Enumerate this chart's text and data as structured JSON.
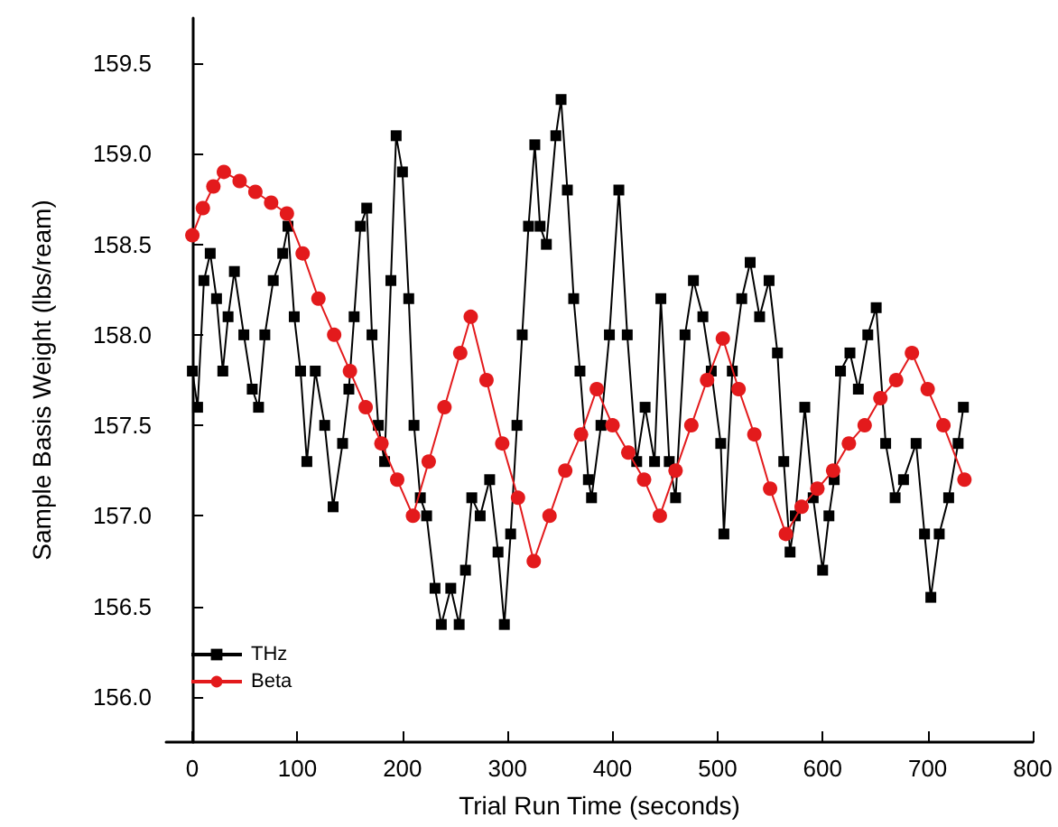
{
  "chart_data": {
    "type": "line",
    "xlabel": "Trial Run Time (seconds)",
    "ylabel": "Sample Basis Weight (lbs/ream)",
    "xlim": [
      -25,
      800
    ],
    "xticks": [
      0,
      100,
      200,
      300,
      400,
      500,
      600,
      700,
      800
    ],
    "ylim": [
      155.75,
      159.75
    ],
    "yticks": [
      {
        "value": 156,
        "label": "156.0"
      },
      {
        "value": 156.5,
        "label": "156.5"
      },
      {
        "value": 157,
        "label": "157.0"
      },
      {
        "value": 157.5,
        "label": "157.5"
      },
      {
        "value": 158,
        "label": "158.0"
      },
      {
        "value": 158.5,
        "label": "158.5"
      },
      {
        "value": 159,
        "label": "159.0"
      },
      {
        "value": 159.5,
        "label": "159.5"
      }
    ],
    "grid": false,
    "legend": "bottom left",
    "series": [
      {
        "name": "THz",
        "color": "#000000",
        "marker": "square",
        "x": [
          0,
          5,
          11,
          17,
          23,
          29,
          34,
          40,
          49,
          57,
          63,
          69,
          77,
          86,
          91,
          97,
          103,
          109,
          117,
          126,
          134,
          143,
          149,
          154,
          160,
          166,
          171,
          177,
          183,
          189,
          194,
          200,
          206,
          211,
          217,
          223,
          231,
          237,
          246,
          254,
          260,
          266,
          274,
          283,
          291,
          297,
          303,
          309,
          314,
          320,
          326,
          331,
          337,
          346,
          351,
          357,
          363,
          369,
          377,
          380,
          389,
          397,
          406,
          414,
          423,
          431,
          440,
          446,
          454,
          460,
          469,
          477,
          486,
          494,
          503,
          506,
          514,
          523,
          531,
          540,
          549,
          557,
          563,
          569,
          574,
          583,
          591,
          600,
          606,
          611,
          617,
          626,
          634,
          643,
          651,
          660,
          669,
          677,
          689,
          697,
          703,
          711,
          720,
          729,
          734
        ],
        "values": [
          157.8,
          157.6,
          158.3,
          158.45,
          158.2,
          157.8,
          158.1,
          158.35,
          158.0,
          157.7,
          157.6,
          158.0,
          158.3,
          158.45,
          158.6,
          158.1,
          157.8,
          157.3,
          157.8,
          157.5,
          157.05,
          157.4,
          157.7,
          158.1,
          158.6,
          158.7,
          158.0,
          157.5,
          157.3,
          158.3,
          159.1,
          158.9,
          158.2,
          157.5,
          157.1,
          157.0,
          156.6,
          156.4,
          156.6,
          156.4,
          156.7,
          157.1,
          157.0,
          157.2,
          156.8,
          156.4,
          156.9,
          157.5,
          158.0,
          158.6,
          159.05,
          158.6,
          158.5,
          159.1,
          159.3,
          158.8,
          158.2,
          157.8,
          157.2,
          157.1,
          157.5,
          158.0,
          158.8,
          158.0,
          157.3,
          157.6,
          157.3,
          158.2,
          157.3,
          157.1,
          158.0,
          158.3,
          158.1,
          157.8,
          157.4,
          156.9,
          157.8,
          158.2,
          158.4,
          158.1,
          158.3,
          157.9,
          157.3,
          156.8,
          157.0,
          157.6,
          157.1,
          156.7,
          157.0,
          157.2,
          157.8,
          157.9,
          157.7,
          158.0,
          158.15,
          157.4,
          157.1,
          157.2,
          157.4,
          156.9,
          156.55,
          156.9,
          157.1,
          157.4,
          157.6
        ]
      },
      {
        "name": "Beta",
        "color": "#e31a1c",
        "marker": "circle",
        "x": [
          0,
          10,
          20,
          30,
          45,
          60,
          75,
          90,
          105,
          120,
          135,
          150,
          165,
          180,
          195,
          210,
          225,
          240,
          255,
          265,
          280,
          295,
          310,
          325,
          340,
          355,
          370,
          385,
          400,
          415,
          430,
          445,
          460,
          475,
          490,
          505,
          520,
          535,
          550,
          565,
          580,
          595,
          610,
          625,
          640,
          655,
          670,
          685,
          700,
          715,
          735
        ],
        "values": [
          158.55,
          158.7,
          158.82,
          158.9,
          158.85,
          158.79,
          158.73,
          158.67,
          158.45,
          158.2,
          158.0,
          157.8,
          157.6,
          157.4,
          157.2,
          157.0,
          157.3,
          157.6,
          157.9,
          158.1,
          157.75,
          157.4,
          157.1,
          156.75,
          157.0,
          157.25,
          157.45,
          157.7,
          157.5,
          157.35,
          157.2,
          157.0,
          157.25,
          157.5,
          157.75,
          157.98,
          157.7,
          157.45,
          157.15,
          156.9,
          157.05,
          157.15,
          157.25,
          157.4,
          157.5,
          157.65,
          157.75,
          157.9,
          157.7,
          157.5,
          157.2
        ]
      }
    ]
  }
}
